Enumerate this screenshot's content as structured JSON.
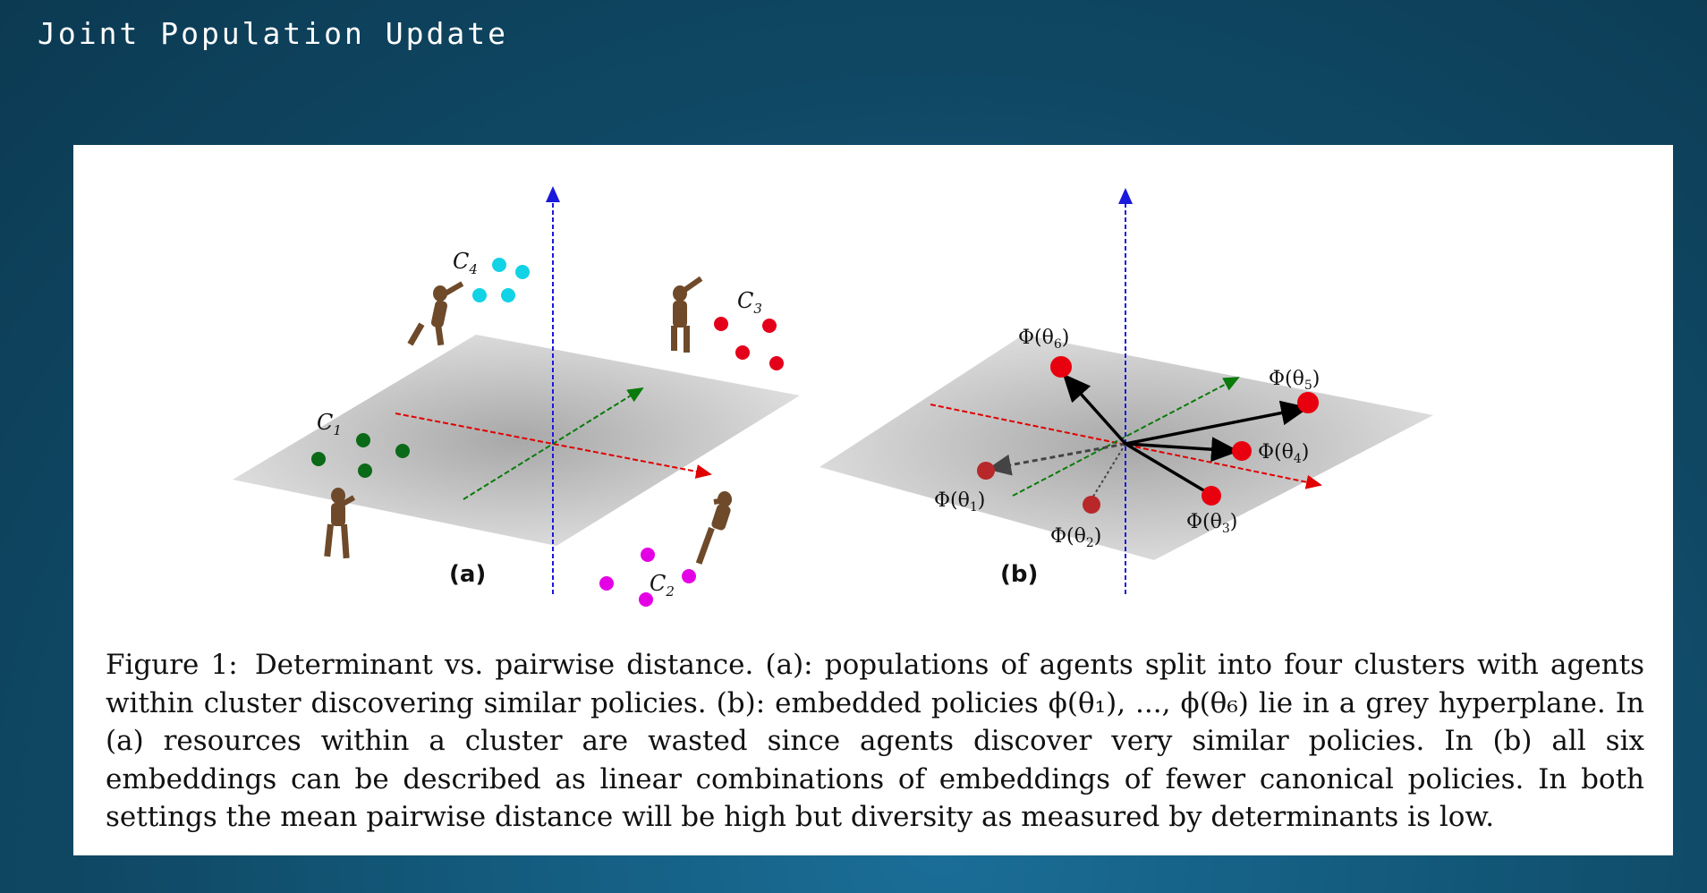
{
  "slide": {
    "title": "Joint Population Update"
  },
  "figure": {
    "panel_a": {
      "label": "(a)",
      "clusters": [
        {
          "label": "C",
          "sub": "1",
          "color": "#0a6a18"
        },
        {
          "label": "C",
          "sub": "2",
          "color": "#e400e4"
        },
        {
          "label": "C",
          "sub": "3",
          "color": "#e4001a"
        },
        {
          "label": "C",
          "sub": "4",
          "color": "#12d2e6"
        }
      ]
    },
    "panel_b": {
      "label": "(b)",
      "embeddings": [
        {
          "label": "Φ(θ",
          "sub": "1",
          "close": ")"
        },
        {
          "label": "Φ(θ",
          "sub": "2",
          "close": ")"
        },
        {
          "label": "Φ(θ",
          "sub": "3",
          "close": ")"
        },
        {
          "label": "Φ(θ",
          "sub": "4",
          "close": ")"
        },
        {
          "label": "Φ(θ",
          "sub": "5",
          "close": ")"
        },
        {
          "label": "Φ(θ",
          "sub": "6",
          "close": ")"
        }
      ]
    },
    "caption": {
      "label": "Figure 1:",
      "text": "Determinant vs. pairwise distance. (a): populations of agents split into four clusters with agents within cluster discovering similar policies. (b): embedded policies ϕ(θ₁), ..., ϕ(θ₆) lie in a grey hyperplane. In (a) resources within a cluster are wasted since agents discover very similar policies. In (b) all six embeddings can be described as linear combinations of embeddings of fewer canonical policies. In both settings the mean pairwise distance will be high but diversity as measured by determinants is low."
    },
    "colors": {
      "plane": "#c2c2c2",
      "axis_x": "#e00000",
      "axis_y": "#0a7a0a",
      "axis_z": "#1a1adc",
      "point_red": "#e8000e",
      "figure_agent": "#6e4a2a"
    }
  }
}
